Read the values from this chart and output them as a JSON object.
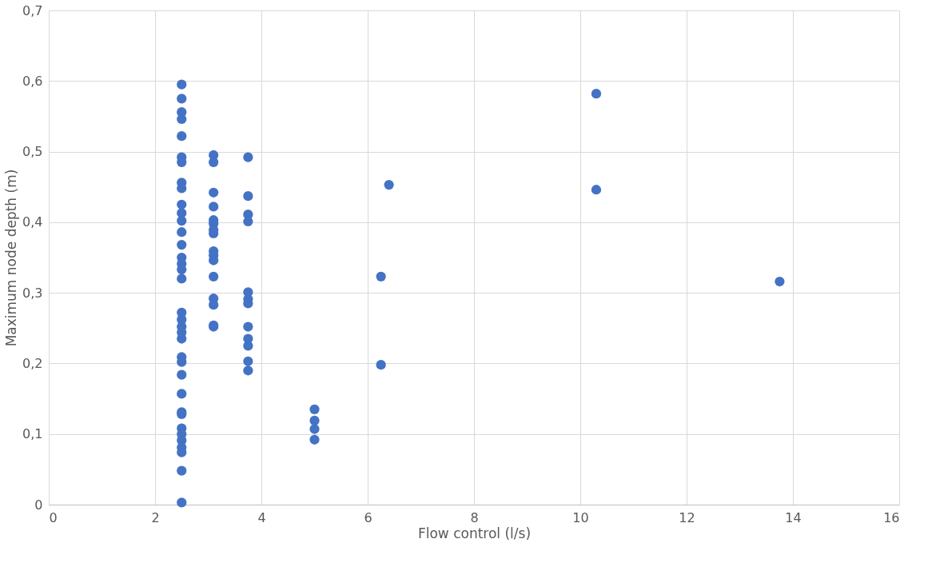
{
  "chart_data": {
    "type": "scatter",
    "xlabel": "Flow control (l/s)",
    "ylabel": "Maximum node depth (m)",
    "series": [
      {
        "color": "#4472c4",
        "x": [
          2.5,
          2.5,
          2.5,
          2.5,
          2.5,
          2.5,
          2.5,
          2.5,
          2.5,
          2.5,
          2.5,
          2.5,
          2.5,
          2.5,
          2.5,
          2.5,
          2.5,
          2.5,
          2.5,
          2.5,
          2.5,
          2.5,
          2.5,
          2.5,
          2.5,
          2.5,
          2.5,
          2.5,
          2.5,
          2.5,
          2.5,
          2.5,
          2.5,
          2.5,
          2.5,
          2.5,
          3.1,
          3.1,
          3.1,
          3.1,
          3.1,
          3.1,
          3.1,
          3.1,
          3.1,
          3.1,
          3.1,
          3.1,
          3.1,
          3.1,
          3.1,
          3.1,
          3.75,
          3.75,
          3.75,
          3.75,
          3.75,
          3.75,
          3.75,
          3.75,
          3.75,
          3.75,
          3.75,
          3.75,
          5,
          5,
          5,
          5,
          6.25,
          6.25,
          6.4,
          10.3,
          10.3,
          13.75
        ],
        "values": [
          0.595,
          0.575,
          0.556,
          0.546,
          0.522,
          0.492,
          0.485,
          0.456,
          0.448,
          0.425,
          0.413,
          0.402,
          0.386,
          0.368,
          0.35,
          0.341,
          0.333,
          0.32,
          0.272,
          0.262,
          0.252,
          0.244,
          0.235,
          0.209,
          0.202,
          0.184,
          0.157,
          0.131,
          0.128,
          0.108,
          0.1,
          0.091,
          0.081,
          0.074,
          0.048,
          0.003,
          0.495,
          0.485,
          0.442,
          0.422,
          0.403,
          0.398,
          0.389,
          0.384,
          0.359,
          0.353,
          0.346,
          0.323,
          0.292,
          0.283,
          0.254,
          0.252,
          0.492,
          0.437,
          0.411,
          0.401,
          0.301,
          0.291,
          0.285,
          0.252,
          0.235,
          0.225,
          0.203,
          0.19,
          0.135,
          0.119,
          0.107,
          0.092,
          0.323,
          0.198,
          0.453,
          0.582,
          0.446,
          0.316
        ]
      }
    ],
    "xlim": [
      0,
      16
    ],
    "xticks": [
      0,
      2,
      4,
      6,
      8,
      10,
      12,
      14,
      16
    ],
    "ylim": [
      0,
      0.7
    ],
    "yticks": [
      0,
      {
        "value": 0.1,
        "label": "0,1"
      },
      {
        "value": 0.2,
        "label": "0,2"
      },
      {
        "value": 0.3,
        "label": "0,3"
      },
      {
        "value": 0.4,
        "label": "0,4"
      },
      {
        "value": 0.5,
        "label": "0,5"
      },
      {
        "value": 0.6,
        "label": "0,6"
      },
      {
        "value": 0.7,
        "label": "0,7"
      }
    ],
    "grid": true,
    "marker": "circle",
    "legend": false
  }
}
